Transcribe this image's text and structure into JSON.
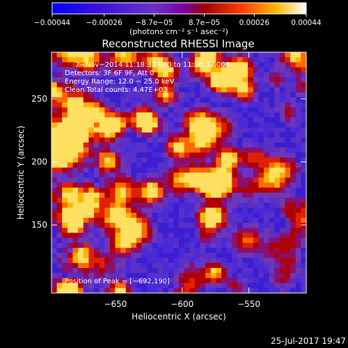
{
  "chart_data": {
    "type": "heatmap",
    "title": "Reconstructed RHESSI Image",
    "xlabel": "Heliocentric X (arcsec)",
    "ylabel": "Heliocentric Y (arcsec)",
    "xlim": [
      -698,
      -507
    ],
    "ylim": [
      96,
      287
    ],
    "xticks": [
      {
        "value": -650,
        "label": "−650"
      },
      {
        "value": -600,
        "label": "−600"
      },
      {
        "value": -550,
        "label": "−550"
      }
    ],
    "yticks": [
      {
        "value": 150,
        "label": "150"
      },
      {
        "value": 200,
        "label": "200"
      },
      {
        "value": 250,
        "label": "250"
      }
    ],
    "colorbar": {
      "range": [
        -0.00044,
        0.00044
      ],
      "ticks": [
        {
          "value": -0.00044,
          "label": "−0.00044"
        },
        {
          "value": -0.00026,
          "label": "−0.00026"
        },
        {
          "value": -8.7e-05,
          "label": "−8.7e−05"
        },
        {
          "value": 8.7e-05,
          "label": "8.7e−05"
        },
        {
          "value": 0.00026,
          "label": "0.00026"
        },
        {
          "value": 0.00044,
          "label": "0.00044"
        }
      ],
      "unit_label": "(photons cm⁻² s⁻¹ asec⁻²)"
    },
    "annotations": {
      "lines": [
        "7−Nov−2014 11:18:32.000 to 11:20:32.000",
        "Detectors: 3F 6F 9F, Att 0",
        "Energy Range: 12.0 − 25.0 keV",
        "Clean    Total counts: 4.47E+03"
      ],
      "peak": "Position of Peak = [−692,190]"
    },
    "grid_cells": 48,
    "colors": {
      "background": "#000000",
      "text": "#ffffff",
      "colormap": [
        "#0000ff",
        "#6a28c8",
        "#6a3ad2",
        "#9b0000",
        "#ff5500",
        "#ffd800",
        "#ffffff"
      ]
    }
  },
  "footer": {
    "date": "25-Jul-2017 19:47"
  }
}
